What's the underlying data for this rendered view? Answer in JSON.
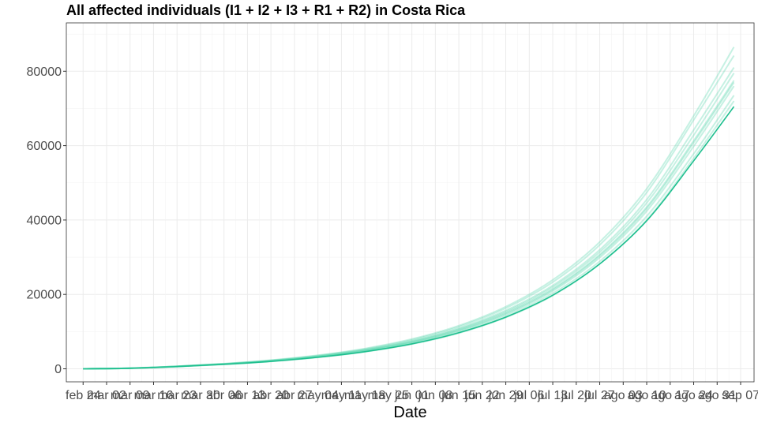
{
  "chart_data": {
    "type": "line",
    "title": "All affected individuals (I1 + I2 + I3 + R1 + R2) in  Costa Rica",
    "xlabel": "Date",
    "ylabel": "",
    "ylim": [
      -3500,
      93000
    ],
    "yticks": [
      0,
      20000,
      40000,
      60000,
      80000
    ],
    "ytick_labels": [
      "0",
      "20000",
      "40000",
      "60000",
      "80000"
    ],
    "xlim": [
      "2020-02-19",
      "2020-09-11"
    ],
    "x_start": "2020-02-24",
    "x_end": "2020-09-05",
    "xticks": [
      {
        "date": "2020-02-24",
        "label": "feb 24"
      },
      {
        "date": "2020-03-02",
        "label": "mar 02"
      },
      {
        "date": "2020-03-09",
        "label": "mar 09"
      },
      {
        "date": "2020-03-16",
        "label": "mar 16"
      },
      {
        "date": "2020-03-23",
        "label": "mar 23"
      },
      {
        "date": "2020-03-30",
        "label": "mar 30"
      },
      {
        "date": "2020-04-06",
        "label": "abr 06"
      },
      {
        "date": "2020-04-13",
        "label": "abr 13"
      },
      {
        "date": "2020-04-20",
        "label": "abr 20"
      },
      {
        "date": "2020-04-27",
        "label": "abr 27"
      },
      {
        "date": "2020-05-04",
        "label": "may 04"
      },
      {
        "date": "2020-05-11",
        "label": "may 11"
      },
      {
        "date": "2020-05-18",
        "label": "may 18"
      },
      {
        "date": "2020-05-25",
        "label": "may 25"
      },
      {
        "date": "2020-06-01",
        "label": "jun 01"
      },
      {
        "date": "2020-06-08",
        "label": "jun 08"
      },
      {
        "date": "2020-06-15",
        "label": "jun 15"
      },
      {
        "date": "2020-06-22",
        "label": "jun 22"
      },
      {
        "date": "2020-06-29",
        "label": "jun 29"
      },
      {
        "date": "2020-07-06",
        "label": "jul 06"
      },
      {
        "date": "2020-07-13",
        "label": "jul 13"
      },
      {
        "date": "2020-07-20",
        "label": "jul 20"
      },
      {
        "date": "2020-07-27",
        "label": "jul 27"
      },
      {
        "date": "2020-08-03",
        "label": "ago 03"
      },
      {
        "date": "2020-08-10",
        "label": "ago 10"
      },
      {
        "date": "2020-08-17",
        "label": "ago 17"
      },
      {
        "date": "2020-08-24",
        "label": "ago 24"
      },
      {
        "date": "2020-08-31",
        "label": "ago 31"
      },
      {
        "date": "2020-09-07",
        "label": "sep 07"
      }
    ],
    "x_dates": [
      "2020-02-24",
      "2020-03-09",
      "2020-03-23",
      "2020-04-06",
      "2020-04-20",
      "2020-05-04",
      "2020-05-18",
      "2020-06-01",
      "2020-06-15",
      "2020-06-29",
      "2020-07-13",
      "2020-07-27",
      "2020-08-10",
      "2020-08-24",
      "2020-09-05"
    ],
    "series": [
      {
        "values": [
          0,
          150,
          600,
          1200,
          2000,
          3100,
          4600,
          6700,
          9700,
          13900,
          19800,
          28200,
          39800,
          55900,
          70500
        ]
      },
      {
        "values": [
          0,
          160,
          640,
          1280,
          2140,
          3330,
          4960,
          7250,
          10500,
          15100,
          21500,
          30700,
          43500,
          61300,
          77500
        ]
      },
      {
        "values": [
          0,
          165,
          660,
          1320,
          2200,
          3430,
          5120,
          7500,
          10900,
          15700,
          22400,
          32000,
          45500,
          64200,
          81000
        ]
      },
      {
        "values": [
          0,
          170,
          680,
          1360,
          2270,
          3550,
          5300,
          7780,
          11300,
          16300,
          23300,
          33300,
          47400,
          66900,
          84200
        ]
      },
      {
        "values": [
          0,
          145,
          590,
          1180,
          1970,
          3060,
          4550,
          6640,
          9600,
          13800,
          19700,
          28200,
          40000,
          56600,
          72000
        ]
      },
      {
        "values": [
          0,
          155,
          620,
          1240,
          2070,
          3220,
          4800,
          7010,
          10160,
          14600,
          20900,
          29900,
          42400,
          59800,
          76000
        ]
      },
      {
        "values": [
          0,
          162,
          650,
          1300,
          2170,
          3380,
          5040,
          7380,
          10700,
          15400,
          22000,
          31400,
          44600,
          62800,
          79500
        ]
      },
      {
        "values": [
          0,
          158,
          630,
          1260,
          2100,
          3270,
          4870,
          7120,
          10320,
          14850,
          21250,
          30400,
          43100,
          60800,
          77000
        ]
      },
      {
        "values": [
          0,
          175,
          700,
          1400,
          2340,
          3650,
          5450,
          8000,
          11600,
          16700,
          23900,
          34100,
          48400,
          68000,
          86500
        ]
      },
      {
        "values": [
          0,
          150,
          605,
          1210,
          2020,
          3140,
          4680,
          6830,
          9880,
          14200,
          20300,
          28900,
          41000,
          57800,
          73500
        ]
      }
    ],
    "highlight_series_index": 0,
    "grid": true,
    "line_color": "#1fbf8f",
    "band_color": "#5cd6b0"
  }
}
